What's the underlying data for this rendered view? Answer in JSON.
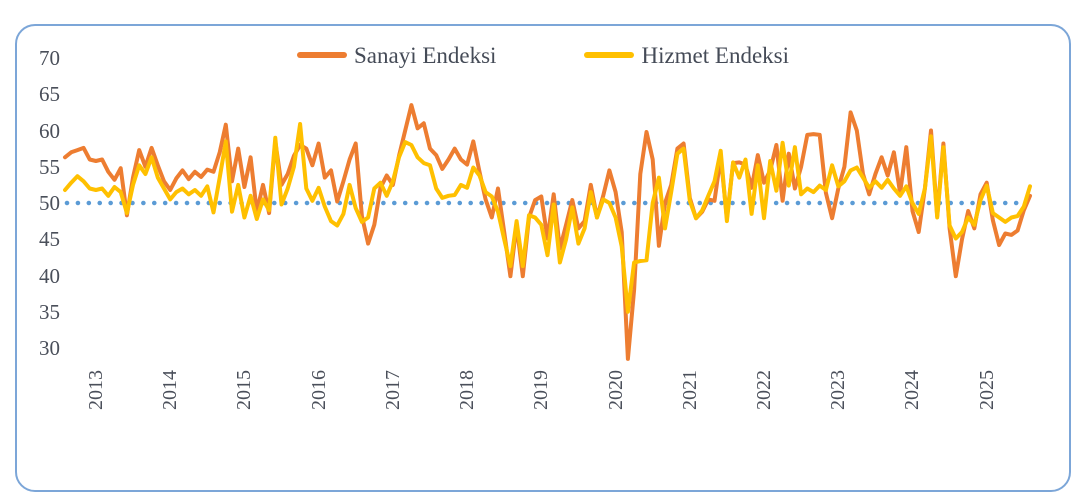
{
  "colors": {
    "sanayi": "#ED7D31",
    "hizmet": "#FFC000",
    "reference_line": "#5B9BD5",
    "frame_border": "#7CA6D8",
    "text": "#4a4f5a",
    "background": "#ffffff"
  },
  "legend": {
    "items": [
      {
        "label": "Sanayi Endeksi",
        "color": "#ED7D31"
      },
      {
        "label": "Hizmet Endeksi",
        "color": "#FFC000"
      }
    ]
  },
  "chart_data": {
    "type": "line",
    "title": "",
    "xlabel": "",
    "ylabel": "",
    "frequency": "monthly",
    "x_start": "2012-08",
    "x_end": "2025-08",
    "legend_position": "top-center",
    "grid": false,
    "y_ticks": [
      70,
      65,
      60,
      55,
      50,
      45,
      40,
      35,
      30
    ],
    "ylim": [
      30,
      70
    ],
    "x_tick_labels": [
      "2013",
      "2014",
      "2015",
      "2016",
      "2017",
      "2018",
      "2019",
      "2020",
      "2021",
      "2022",
      "2023",
      "2024",
      "2025"
    ],
    "x_tick_month_index": [
      5,
      17,
      29,
      41,
      53,
      65,
      77,
      89,
      101,
      113,
      125,
      137,
      149
    ],
    "reference_line": {
      "value": 50,
      "style": "dotted",
      "color": "#5B9BD5"
    },
    "series": [
      {
        "name": "Sanayi Endeksi",
        "color": "#ED7D31",
        "values": [
          56.3,
          57.0,
          57.3,
          57.6,
          56.0,
          55.8,
          56.0,
          54.3,
          53.2,
          54.8,
          48.3,
          53.5,
          57.3,
          55.0,
          57.6,
          55.2,
          53.0,
          51.8,
          53.4,
          54.5,
          53.3,
          54.3,
          53.6,
          54.6,
          54.3,
          57.0,
          60.8,
          53.0,
          57.5,
          52.2,
          56.3,
          48.8,
          52.5,
          48.6,
          58.5,
          52.5,
          54.0,
          56.5,
          58.0,
          57.5,
          55.2,
          58.2,
          53.5,
          54.5,
          50.2,
          53.0,
          56.0,
          58.2,
          48.2,
          44.4,
          47.0,
          52.1,
          53.8,
          52.5,
          56.5,
          60.0,
          63.5,
          60.3,
          61.0,
          57.5,
          56.6,
          54.7,
          56.0,
          57.5,
          56.0,
          55.3,
          58.5,
          54.3,
          50.5,
          48.0,
          52.0,
          46.0,
          39.9,
          47.0,
          39.9,
          48.0,
          50.4,
          50.9,
          45.1,
          51.2,
          43.7,
          47.0,
          50.4,
          46.5,
          47.5,
          52.5,
          48.0,
          51.0,
          54.5,
          51.5,
          46.0,
          28.5,
          38.0,
          54.0,
          59.8,
          56.0,
          44.1,
          50.0,
          52.5,
          57.5,
          58.2,
          50.7,
          47.9,
          48.8,
          50.5,
          50.3,
          56.4,
          47.9,
          55.5,
          55.6,
          55.3,
          52.1,
          56.6,
          52.8,
          54.5,
          58.0,
          50.3,
          56.8,
          52.0,
          55.0,
          59.4,
          59.5,
          59.4,
          51.4,
          47.9,
          52.0,
          55.0,
          62.5,
          60.0,
          54.0,
          51.2,
          54.0,
          56.3,
          53.8,
          57.0,
          51.4,
          57.7,
          48.9,
          46.0,
          52.0,
          60.0,
          48.2,
          58.2,
          46.5,
          39.9,
          45.0,
          48.9,
          46.5,
          51.2,
          52.8,
          47.6,
          44.2,
          45.8,
          45.6,
          46.2,
          49.0,
          51.0
        ]
      },
      {
        "name": "Hizmet Endeksi",
        "color": "#FFC000",
        "values": [
          51.8,
          52.8,
          53.7,
          53.0,
          52.0,
          51.8,
          52.0,
          51.0,
          52.2,
          51.5,
          48.6,
          52.5,
          55.2,
          54.0,
          56.3,
          53.5,
          52.0,
          50.5,
          51.5,
          52.0,
          51.2,
          51.8,
          51.0,
          52.3,
          48.7,
          53.5,
          58.5,
          48.8,
          52.5,
          48.0,
          51.0,
          47.8,
          50.5,
          49.0,
          59.0,
          49.8,
          52.0,
          55.0,
          60.9,
          52.0,
          50.3,
          52.1,
          49.5,
          47.5,
          46.9,
          48.5,
          52.5,
          49.3,
          47.4,
          48.0,
          52.0,
          52.8,
          51.0,
          53.0,
          56.3,
          58.4,
          58.0,
          56.3,
          55.5,
          55.2,
          52.0,
          50.7,
          51.0,
          51.1,
          52.5,
          52.1,
          54.9,
          53.8,
          51.5,
          50.9,
          48.8,
          45.0,
          41.3,
          47.5,
          41.3,
          48.3,
          48.0,
          47.0,
          42.8,
          49.8,
          41.8,
          45.0,
          49.4,
          44.4,
          46.5,
          51.5,
          48.0,
          50.5,
          50.0,
          48.0,
          44.0,
          35.0,
          41.8,
          42.0,
          42.1,
          50.0,
          53.5,
          46.5,
          51.5,
          56.8,
          57.5,
          50.3,
          47.9,
          49.0,
          51.0,
          53.0,
          57.2,
          47.5,
          55.6,
          53.5,
          56.0,
          48.5,
          55.2,
          47.9,
          55.8,
          51.7,
          58.3,
          52.4,
          57.7,
          51.2,
          52.0,
          51.5,
          52.4,
          51.8,
          55.2,
          52.3,
          53.0,
          54.5,
          54.9,
          53.5,
          52.1,
          53.0,
          52.1,
          53.2,
          52.0,
          51.0,
          52.3,
          50.0,
          48.5,
          52.0,
          59.2,
          48.0,
          57.7,
          46.9,
          45.1,
          46.0,
          48.0,
          47.0,
          50.4,
          52.4,
          48.6,
          48.0,
          47.4,
          48.0,
          48.2,
          49.5,
          52.3
        ]
      }
    ]
  }
}
